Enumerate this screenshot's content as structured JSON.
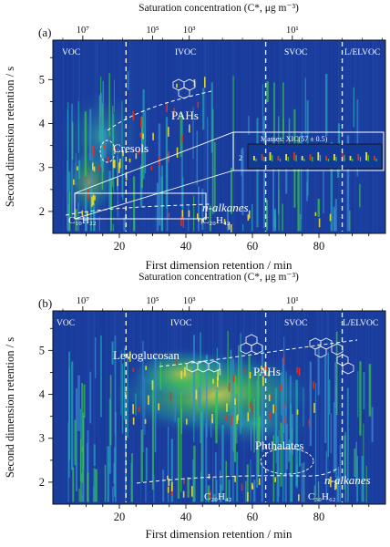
{
  "chart_data": [
    {
      "type": "heatmap",
      "panel": "(a)",
      "xlabel": "First dimension retention / min",
      "ylabel": "Second dimension retention / s",
      "top_axis_label": "Saturation concentration (C*, μg m⁻³)",
      "xlim": [
        0,
        100
      ],
      "ylim": [
        1.5,
        5.9
      ],
      "x_ticks": [
        20,
        40,
        60,
        80
      ],
      "y_ticks": [
        2,
        3,
        4,
        5
      ],
      "top_ticks": [
        {
          "x": 9,
          "label": "10⁷"
        },
        {
          "x": 30,
          "label": "10⁵"
        },
        {
          "x": 41,
          "label": "10³"
        },
        {
          "x": 72,
          "label": "10¹"
        }
      ],
      "volatility_bounds": [
        22,
        64,
        87
      ],
      "regions": [
        "VOC",
        "IVOC",
        "SVOC",
        "L/ELVOC"
      ],
      "annotations": [
        "PAHs",
        "Cresols",
        "n-alkanes",
        "C₁₀H₂₂",
        "C₂₀H₄₂"
      ],
      "inset_label": "Masses: XIC(57 ± 0.5)",
      "inset_ytick": "2"
    },
    {
      "type": "heatmap",
      "panel": "(b)",
      "xlabel": "First dimension retention / min",
      "ylabel": "Second dimension retention / s",
      "top_axis_label": "Saturation concentration (C*, μg m⁻³)",
      "xlim": [
        0,
        100
      ],
      "ylim": [
        1.5,
        5.9
      ],
      "x_ticks": [
        20,
        40,
        60,
        80
      ],
      "y_ticks": [
        2,
        3,
        4,
        5
      ],
      "top_ticks": [
        {
          "x": 9,
          "label": "10⁷"
        },
        {
          "x": 30,
          "label": "10⁵"
        },
        {
          "x": 41,
          "label": "10³"
        },
        {
          "x": 72,
          "label": "10¹"
        }
      ],
      "volatility_bounds": [
        22,
        64,
        87
      ],
      "regions": [
        "VOC",
        "IVOC",
        "SVOC",
        "L/ELVOC"
      ],
      "annotations": [
        "Levoglucosan",
        "PAHs",
        "Phthalates",
        "n-alkanes",
        "C₂₀H₄₂",
        "C₃₀H₆₂"
      ]
    }
  ],
  "colors": {
    "background": "#1a3d9e",
    "hot": "#e8301c",
    "warm": "#f3e12a",
    "mid": "#3cc84c",
    "axis": "#111111"
  }
}
